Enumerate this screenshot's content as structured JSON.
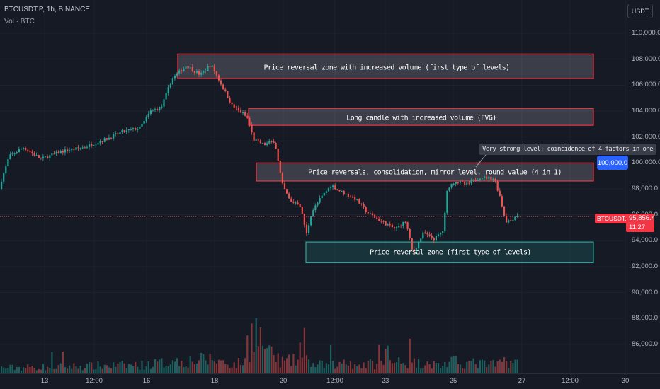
{
  "header": {
    "symbol_line": "BTCUSDT.P, 1h, BINANCE",
    "volume_line": "Vol · BTC"
  },
  "currency_button": "USDT",
  "y_axis_ticks": [
    "110,000.0",
    "108,000.0",
    "106,000.0",
    "104,000.0",
    "102,000.0",
    "100,000.0",
    "98,000.0",
    "96,000.0",
    "94,000.0",
    "92,000.0",
    "90,000.0",
    "88,000.0",
    "86,000.0"
  ],
  "x_axis_ticks": [
    "13",
    "12:00",
    "16",
    "18",
    "20",
    "12:00",
    "23",
    "25",
    "27",
    "12:00",
    "30"
  ],
  "annotations": {
    "zone_1": "Price reversal zone with increased volume (first type of levels)",
    "zone_2": "Long candle with increased volume (FVG)",
    "zone_3": "Price reversals, consolidation, mirror level, round value (4 in 1)",
    "zone_4": "Price reversal zone (first type of levels)",
    "callout": "Very strong level: coincidence of 4 factors in one"
  },
  "badges": {
    "level_price": "100,000.0",
    "symbol": "BTCUSDT.P",
    "last_price": "95,856.4",
    "countdown": "11:27"
  },
  "colors": {
    "background": "#161a25",
    "up": "#26a69a",
    "down": "#ef5350",
    "resistance_zone": "#f23645",
    "support_zone": "#26a69a",
    "level_badge": "#2962ff",
    "price_badge": "#f23645"
  },
  "chart_data": {
    "type": "candlestick",
    "timeframe": "1h",
    "y_range": [
      84000,
      111000
    ],
    "price_path": [
      [
        0,
        98000
      ],
      [
        15,
        100500
      ],
      [
        35,
        101200
      ],
      [
        60,
        100300
      ],
      [
        90,
        100900
      ],
      [
        120,
        101200
      ],
      [
        150,
        101800
      ],
      [
        175,
        102400
      ],
      [
        200,
        102700
      ],
      [
        215,
        104000
      ],
      [
        230,
        104300
      ],
      [
        245,
        106500
      ],
      [
        265,
        107500
      ],
      [
        285,
        106800
      ],
      [
        300,
        107600
      ],
      [
        315,
        106000
      ],
      [
        330,
        104400
      ],
      [
        345,
        103800
      ],
      [
        352,
        103400
      ],
      [
        360,
        101800
      ],
      [
        375,
        101400
      ],
      [
        390,
        101700
      ],
      [
        400,
        98400
      ],
      [
        412,
        97000
      ],
      [
        425,
        96900
      ],
      [
        435,
        94500
      ],
      [
        442,
        96200
      ],
      [
        455,
        97300
      ],
      [
        470,
        98300
      ],
      [
        480,
        97900
      ],
      [
        490,
        97600
      ],
      [
        505,
        97200
      ],
      [
        520,
        96200
      ],
      [
        540,
        95500
      ],
      [
        560,
        94900
      ],
      [
        575,
        95500
      ],
      [
        585,
        93000
      ],
      [
        600,
        94600
      ],
      [
        615,
        94100
      ],
      [
        628,
        94800
      ],
      [
        634,
        98100
      ],
      [
        645,
        98600
      ],
      [
        660,
        98300
      ],
      [
        680,
        98900
      ],
      [
        700,
        98800
      ],
      [
        708,
        97400
      ],
      [
        716,
        95500
      ],
      [
        724,
        95600
      ],
      [
        733,
        96000
      ]
    ],
    "volume_baseline_btc": [
      [
        0,
        2
      ],
      [
        200,
        3
      ],
      [
        240,
        4
      ],
      [
        300,
        5
      ],
      [
        330,
        3
      ],
      [
        350,
        5
      ],
      [
        355,
        18
      ],
      [
        380,
        6
      ],
      [
        400,
        4
      ],
      [
        430,
        5
      ],
      [
        440,
        3
      ],
      [
        500,
        3
      ],
      [
        570,
        4
      ],
      [
        620,
        3
      ],
      [
        640,
        4
      ],
      [
        700,
        3
      ],
      [
        715,
        5
      ],
      [
        733,
        3
      ]
    ],
    "zones": [
      {
        "label": "zone_1",
        "kind": "resistance",
        "price_low": 106500,
        "price_high": 108400,
        "date_start": "17",
        "date_end": "27"
      },
      {
        "label": "zone_2",
        "kind": "resistance",
        "price_low": 102900,
        "price_high": 104200,
        "date_start": "19",
        "date_end": "27"
      },
      {
        "label": "zone_3",
        "kind": "resistance",
        "price_low": 98600,
        "price_high": 100000,
        "date_start": "19",
        "date_end": "27"
      },
      {
        "label": "zone_4",
        "kind": "support",
        "price_low": 92300,
        "price_high": 93900,
        "date_start": "20",
        "date_end": "27"
      }
    ],
    "current_price": 95856.4
  }
}
